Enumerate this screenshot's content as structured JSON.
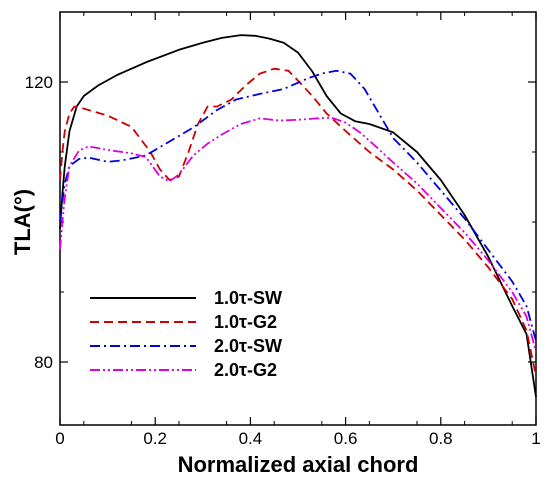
{
  "chart_data": {
    "type": "line",
    "xlabel": "Normalized axial chord",
    "ylabel": "TLA(°)",
    "xlim": [
      0,
      1
    ],
    "ylim": [
      71,
      130
    ],
    "x_ticks": [
      0,
      0.2,
      0.4,
      0.6,
      0.8,
      1
    ],
    "x_tick_labels": [
      "0",
      "0.2",
      "0.4",
      "0.6",
      "0.8",
      "1"
    ],
    "y_ticks": [
      80,
      120
    ],
    "y_tick_labels": [
      "80",
      "120"
    ],
    "legend_position": "bottom-left",
    "grid": false,
    "series": [
      {
        "name": "1.0τ-SW",
        "color": "#000000",
        "dash": "solid",
        "points": [
          [
            0,
            99
          ],
          [
            0.005,
            104
          ],
          [
            0.01,
            108
          ],
          [
            0.02,
            113
          ],
          [
            0.035,
            116.5
          ],
          [
            0.05,
            118
          ],
          [
            0.08,
            119.5
          ],
          [
            0.12,
            121
          ],
          [
            0.18,
            122.8
          ],
          [
            0.25,
            124.6
          ],
          [
            0.3,
            125.6
          ],
          [
            0.34,
            126.3
          ],
          [
            0.38,
            126.7
          ],
          [
            0.41,
            126.6
          ],
          [
            0.44,
            126.2
          ],
          [
            0.47,
            125.6
          ],
          [
            0.5,
            124.2
          ],
          [
            0.53,
            121.5
          ],
          [
            0.56,
            118
          ],
          [
            0.59,
            115.5
          ],
          [
            0.62,
            114.4
          ],
          [
            0.65,
            114
          ],
          [
            0.7,
            112.8
          ],
          [
            0.75,
            110
          ],
          [
            0.8,
            106
          ],
          [
            0.85,
            101
          ],
          [
            0.9,
            95
          ],
          [
            0.95,
            88
          ],
          [
            0.98,
            84
          ],
          [
            1,
            75
          ]
        ]
      },
      {
        "name": "1.0τ-G2",
        "color": "#cc0000",
        "dash": "dashed",
        "points": [
          [
            0,
            106
          ],
          [
            0.005,
            110
          ],
          [
            0.01,
            113
          ],
          [
            0.02,
            115.5
          ],
          [
            0.03,
            116.5
          ],
          [
            0.05,
            116.2
          ],
          [
            0.1,
            115.2
          ],
          [
            0.15,
            113.6
          ],
          [
            0.19,
            110
          ],
          [
            0.21,
            107.5
          ],
          [
            0.23,
            106
          ],
          [
            0.25,
            106.5
          ],
          [
            0.27,
            110
          ],
          [
            0.29,
            114
          ],
          [
            0.31,
            116.5
          ],
          [
            0.33,
            116.5
          ],
          [
            0.36,
            117.5
          ],
          [
            0.39,
            119.5
          ],
          [
            0.42,
            121.2
          ],
          [
            0.45,
            121.9
          ],
          [
            0.48,
            121.6
          ],
          [
            0.5,
            120.2
          ],
          [
            0.53,
            118
          ],
          [
            0.56,
            115.5
          ],
          [
            0.6,
            113
          ],
          [
            0.65,
            110
          ],
          [
            0.7,
            107.5
          ],
          [
            0.75,
            104.5
          ],
          [
            0.8,
            101
          ],
          [
            0.85,
            97.5
          ],
          [
            0.9,
            93.5
          ],
          [
            0.95,
            89
          ],
          [
            0.98,
            84.5
          ],
          [
            1,
            78
          ]
        ]
      },
      {
        "name": "2.0τ-SW",
        "color": "#0000dd",
        "dash": "dashdot",
        "points": [
          [
            0,
            100
          ],
          [
            0.005,
            103
          ],
          [
            0.01,
            105.5
          ],
          [
            0.02,
            108
          ],
          [
            0.04,
            109
          ],
          [
            0.06,
            109.2
          ],
          [
            0.1,
            108.6
          ],
          [
            0.13,
            108.8
          ],
          [
            0.18,
            109.5
          ],
          [
            0.23,
            111.5
          ],
          [
            0.28,
            113.5
          ],
          [
            0.33,
            116
          ],
          [
            0.37,
            117.5
          ],
          [
            0.42,
            118.3
          ],
          [
            0.47,
            119
          ],
          [
            0.52,
            120.5
          ],
          [
            0.55,
            121.2
          ],
          [
            0.58,
            121.6
          ],
          [
            0.61,
            121.2
          ],
          [
            0.64,
            119
          ],
          [
            0.67,
            115.5
          ],
          [
            0.7,
            112
          ],
          [
            0.75,
            108.5
          ],
          [
            0.8,
            104.5
          ],
          [
            0.85,
            100.5
          ],
          [
            0.9,
            96
          ],
          [
            0.95,
            91.5
          ],
          [
            0.98,
            88
          ],
          [
            1,
            83
          ]
        ]
      },
      {
        "name": "2.0τ-G2",
        "color": "#dd00dd",
        "dash": "dashdotdot",
        "points": [
          [
            0,
            96
          ],
          [
            0.005,
            100
          ],
          [
            0.01,
            103.5
          ],
          [
            0.02,
            108
          ],
          [
            0.04,
            110.2
          ],
          [
            0.06,
            110.8
          ],
          [
            0.1,
            110.3
          ],
          [
            0.15,
            109.8
          ],
          [
            0.18,
            109.3
          ],
          [
            0.21,
            106.5
          ],
          [
            0.23,
            105.8
          ],
          [
            0.25,
            106.8
          ],
          [
            0.28,
            109.5
          ],
          [
            0.31,
            111.2
          ],
          [
            0.34,
            112.5
          ],
          [
            0.38,
            114
          ],
          [
            0.42,
            114.8
          ],
          [
            0.46,
            114.5
          ],
          [
            0.5,
            114.6
          ],
          [
            0.54,
            114.8
          ],
          [
            0.57,
            114.9
          ],
          [
            0.6,
            114.2
          ],
          [
            0.63,
            112.8
          ],
          [
            0.66,
            111
          ],
          [
            0.7,
            108.5
          ],
          [
            0.75,
            105.5
          ],
          [
            0.8,
            102
          ],
          [
            0.85,
            98.5
          ],
          [
            0.9,
            94.5
          ],
          [
            0.95,
            90
          ],
          [
            0.98,
            86.5
          ],
          [
            1,
            81.5
          ]
        ]
      }
    ]
  }
}
